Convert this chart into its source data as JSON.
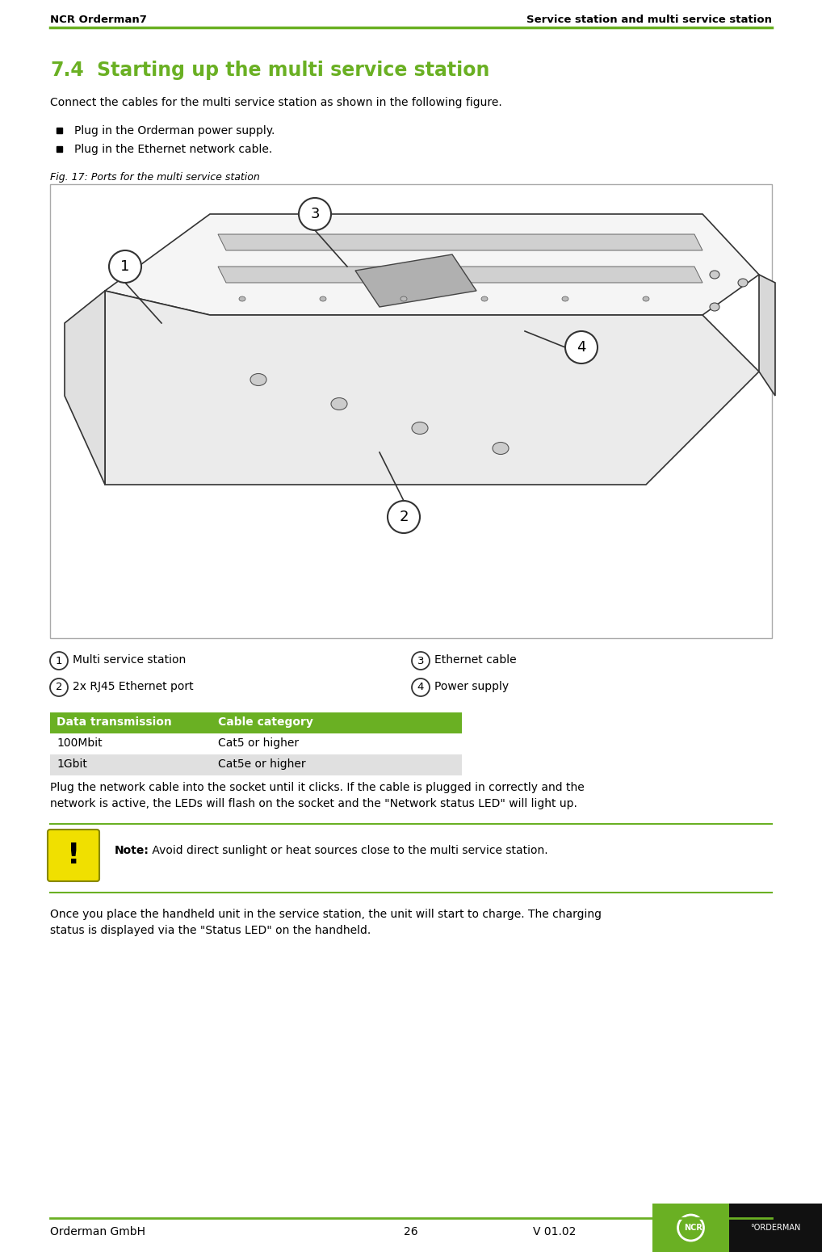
{
  "header_left": "NCR Orderman7",
  "header_right": "Service station and multi service station",
  "header_line_color": "#6ab023",
  "section_number": "7.4",
  "section_title": "Starting up the multi service station",
  "section_title_color": "#6ab023",
  "intro_text": "Connect the cables for the multi service station as shown in the following figure.",
  "bullet1": "Plug in the Orderman power supply.",
  "bullet2": "Plug in the Ethernet network cable.",
  "fig_caption": "Fig. 17: Ports for the multi service station",
  "legend_items": [
    {
      "num": "1",
      "text": "Multi service station"
    },
    {
      "num": "2",
      "text": "2x RJ45 Ethernet port"
    },
    {
      "num": "3",
      "text": "Ethernet cable"
    },
    {
      "num": "4",
      "text": "Power supply"
    }
  ],
  "table_header": [
    "Data transmission",
    "Cable category"
  ],
  "table_header_bg": "#6ab023",
  "table_header_color": "#ffffff",
  "table_rows": [
    [
      "100Mbit",
      "Cat5 or higher"
    ],
    [
      "1Gbit",
      "Cat5e or higher"
    ]
  ],
  "table_row_bg": [
    "#ffffff",
    "#e0e0e0"
  ],
  "plug_lines": [
    "Plug the network cable into the socket until it clicks. If the cable is plugged in correctly and the",
    "network is active, the LEDs will flash on the socket and the \"Network status LED\" will light up."
  ],
  "note_bold": "Note:",
  "note_rest": " Avoid direct sunlight or heat sources close to the multi service station.",
  "note_icon_bg": "#f0e000",
  "note_sep_color": "#6ab023",
  "final_lines": [
    "Once you place the handheld unit in the service station, the unit will start to charge. The charging",
    "status is displayed via the \"Status LED\" on the handheld."
  ],
  "footer_left": "Orderman GmbH",
  "footer_center": "26",
  "footer_version": "V 01.02",
  "footer_line_color": "#6ab023",
  "ncr_green": "#6ab023",
  "ncr_black": "#111111",
  "page_bg": "#ffffff"
}
